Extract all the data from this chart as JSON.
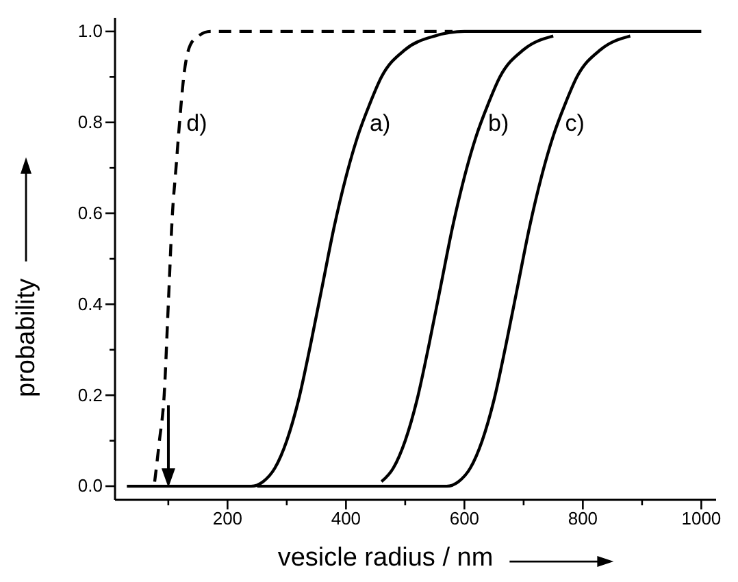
{
  "chart_data": {
    "type": "line",
    "xlabel": "vesicle radius / nm",
    "ylabel": "probability",
    "xlim": [
      10,
      1025
    ],
    "ylim": [
      -0.03,
      1.03
    ],
    "xticks": [
      {
        "value": 100,
        "label": null
      },
      200,
      {
        "value": 300,
        "label": null
      },
      400,
      {
        "value": 500,
        "label": null
      },
      600,
      {
        "value": 700,
        "label": null
      },
      800,
      {
        "value": 900,
        "label": null
      },
      1000
    ],
    "yticks": [
      {
        "value": 0,
        "label": "0.0"
      },
      {
        "value": 0.1,
        "label": null
      },
      {
        "value": 0.2,
        "label": "0.2"
      },
      {
        "value": 0.3,
        "label": null
      },
      {
        "value": 0.4,
        "label": "0.4"
      },
      {
        "value": 0.5,
        "label": null
      },
      {
        "value": 0.6,
        "label": "0.6"
      },
      {
        "value": 0.7,
        "label": null
      },
      {
        "value": 0.8,
        "label": "0.8"
      },
      {
        "value": 0.9,
        "label": null
      },
      {
        "value": 1,
        "label": "1.0"
      }
    ],
    "marker": "none",
    "series": [
      {
        "name": "d)",
        "color": "#000000",
        "line_style": "dashed",
        "x": [
          77,
          85,
          93,
          100,
          107,
          113,
          119,
          126,
          137,
          151,
          171,
          580
        ],
        "values": [
          0.01,
          0.1,
          0.2,
          0.4,
          0.6,
          0.7,
          0.8,
          0.9,
          0.97,
          0.99,
          1,
          1
        ]
      },
      {
        "name": "a)",
        "color": "#000000",
        "line_style": "solid",
        "x": [
          30,
          240,
          260,
          280,
          300,
          320,
          340,
          360,
          380,
          400,
          420,
          440,
          460,
          500,
          550,
          600,
          1000
        ],
        "values": [
          0,
          0,
          0.01,
          0.04,
          0.1,
          0.19,
          0.31,
          0.44,
          0.57,
          0.68,
          0.77,
          0.84,
          0.9,
          0.96,
          0.99,
          1,
          1
        ]
      },
      {
        "name": "b)",
        "color": "#000000",
        "line_style": "solid",
        "x": [
          460,
          480,
          500,
          520,
          540,
          560,
          580,
          600,
          620,
          640,
          660,
          700,
          750
        ],
        "values": [
          0.01,
          0.04,
          0.1,
          0.19,
          0.31,
          0.44,
          0.57,
          0.68,
          0.77,
          0.84,
          0.9,
          0.96,
          0.99
        ]
      },
      {
        "name": "c)",
        "color": "#000000",
        "line_style": "solid",
        "x": [
          250,
          570,
          590,
          610,
          630,
          650,
          670,
          690,
          710,
          730,
          750,
          770,
          790,
          830,
          880
        ],
        "values": [
          0,
          0,
          0.01,
          0.04,
          0.1,
          0.19,
          0.31,
          0.44,
          0.57,
          0.68,
          0.77,
          0.84,
          0.9,
          0.96,
          0.99
        ]
      }
    ]
  }
}
